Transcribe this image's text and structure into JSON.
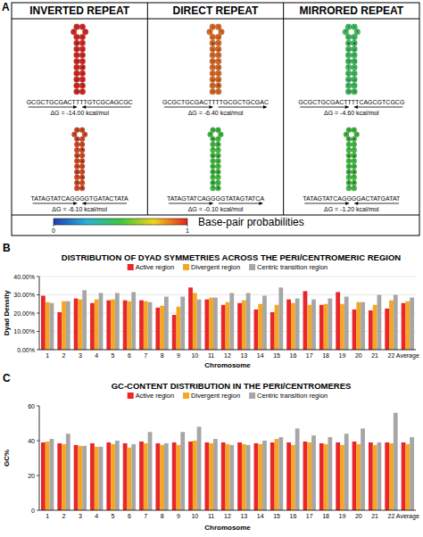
{
  "panel_letters": [
    "A",
    "B",
    "C"
  ],
  "diagram": {
    "columns": [
      {
        "title": "INVERTED REPEAT",
        "hairpins": [
          {
            "sequence": "GCGCTGCGACTTTTGTCGCAGCGC",
            "delta_g": "ΔG = -14.00 kcal/mol",
            "probability": 1.0
          },
          {
            "sequence": "TATAGTATCAGGGGTGATACTATA",
            "delta_g": "ΔG = -6.10 kcal/mol",
            "probability": 0.95
          }
        ]
      },
      {
        "title": "DIRECT REPEAT",
        "hairpins": [
          {
            "sequence": "GCGCTGCGACTTTTGCGCTGCGAC",
            "delta_g": "ΔG = -6.40 kcal/mol",
            "probability": 0.9
          },
          {
            "sequence": "TATAGTATCAGGGGTATAGTATCA",
            "delta_g": "ΔG = -0.10 kcal/mol",
            "probability": 0.5
          }
        ]
      },
      {
        "title": "MIRRORED REPEAT",
        "hairpins": [
          {
            "sequence": "GCGCTGCGACTTTTCAGCGTCGCG",
            "delta_g": "ΔG = -4.60 kcal/mol",
            "probability": 0.45
          },
          {
            "sequence": "TATAGTATCAGGGGACTATGATAT",
            "delta_g": "ΔG = -1.20 kcal/mol",
            "probability": 0.5
          }
        ]
      }
    ],
    "colorbar": {
      "label": "Base-pair probabilities",
      "range": [
        0,
        1
      ],
      "ticks": [
        0,
        1
      ]
    }
  },
  "chart_data": [
    {
      "type": "bar",
      "title": "DISTRIBUTION OF DYAD SYMMETRIES ACROSS THE PERI/CENTROMERIC REGION",
      "y_label": "Dyad Density",
      "x_label": "Chromosome",
      "categories": [
        "1",
        "2",
        "3",
        "4",
        "5",
        "6",
        "7",
        "8",
        "9",
        "10",
        "11",
        "12",
        "13",
        "14",
        "15",
        "16",
        "17",
        "18",
        "19",
        "20",
        "21",
        "22",
        "Average"
      ],
      "series": [
        {
          "name": "Active region",
          "color": "#e8262b",
          "values": [
            29.5,
            20.5,
            28,
            25.5,
            27,
            27,
            27,
            23,
            19,
            34,
            27.5,
            24.5,
            25.5,
            22,
            20.5,
            27.5,
            32,
            24.5,
            31.5,
            22,
            21.5,
            22.5,
            25.5
          ]
        },
        {
          "name": "Divergent region",
          "color": "#f5a623",
          "values": [
            26,
            26.5,
            27.5,
            27.5,
            27.5,
            26.5,
            26.5,
            24,
            23.5,
            31,
            28.5,
            26,
            27,
            25,
            24.5,
            25.5,
            24.5,
            25,
            25,
            26,
            24.5,
            27,
            26.5
          ]
        },
        {
          "name": "Centric transition region",
          "color": "#a6a6a6",
          "values": [
            25.5,
            26.5,
            32.5,
            31,
            31,
            31.5,
            26,
            29,
            29,
            27.5,
            28.5,
            31,
            31,
            29.5,
            34,
            28,
            27.5,
            28,
            29,
            26,
            30,
            30,
            28.5
          ]
        }
      ],
      "ylim": [
        0,
        40
      ],
      "yticks": [
        {
          "value": 0,
          "label": "0.00%"
        },
        {
          "value": 10,
          "label": "10.00%"
        },
        {
          "value": 20,
          "label": "20.00%"
        },
        {
          "value": 30,
          "label": "30.00%"
        },
        {
          "value": 40,
          "label": "40.00%"
        }
      ],
      "grid": true,
      "legend": "top"
    },
    {
      "type": "bar",
      "title": "GC-CONTENT DISTRIBUTION IN THE PERI/CENTROMERES",
      "y_label": "GC%",
      "x_label": "Chromosome",
      "categories": [
        "1",
        "2",
        "3",
        "4",
        "5",
        "6",
        "7",
        "8",
        "9",
        "10",
        "11",
        "12",
        "13",
        "14",
        "15",
        "16",
        "17",
        "18",
        "19",
        "20",
        "21",
        "22",
        "Average"
      ],
      "series": [
        {
          "name": "Active region",
          "color": "#e8262b",
          "values": [
            39,
            38.5,
            37.5,
            38.5,
            39,
            38.5,
            39.5,
            38.5,
            39,
            39.5,
            39,
            39,
            39,
            38.5,
            39,
            39,
            39.5,
            38.5,
            39,
            39.5,
            39,
            39,
            39
          ]
        },
        {
          "name": "Divergent region",
          "color": "#f5a623",
          "values": [
            39.5,
            38,
            37,
            36.5,
            38,
            36,
            38.5,
            37.5,
            37.5,
            40,
            38.5,
            38,
            38,
            38,
            41,
            37.5,
            39,
            38,
            37.5,
            38,
            37.5,
            38.5,
            38
          ]
        },
        {
          "name": "Centric transition region",
          "color": "#a6a6a6",
          "values": [
            41,
            44,
            37,
            36.5,
            40,
            38,
            45,
            38.5,
            45,
            48,
            41,
            37.5,
            37.5,
            40,
            42,
            47,
            43,
            42,
            44,
            47,
            39,
            56,
            42
          ]
        }
      ],
      "ylim": [
        0,
        60
      ],
      "yticks": [
        0,
        20,
        40,
        60
      ],
      "grid": false,
      "legend": "top"
    }
  ]
}
